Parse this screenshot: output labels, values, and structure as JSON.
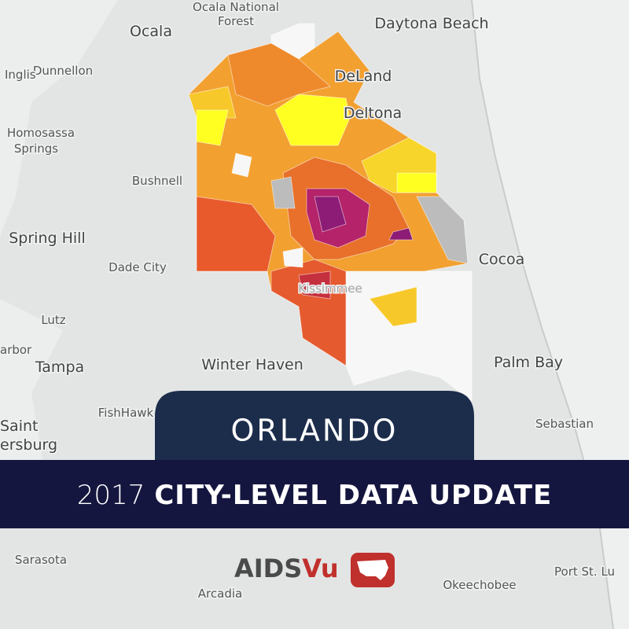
{
  "map_labels": [
    "Ocala National",
    "Forest",
    "Ocala",
    "Daytona Beach",
    "Dunnellon",
    "Inglis",
    "DeLand",
    "Deltona",
    "Homosassa",
    "Springs",
    "Bushnell",
    "Spring Hill",
    "Dade City",
    "Cocoa",
    "Kissimmee",
    "Lutz",
    "arbor",
    "Tampa",
    "Winter Haven",
    "Palm Bay",
    "FishHawk",
    "Saint",
    "ersburg",
    "Sebastian",
    "Sarasota",
    "Arcadia",
    "Okeechobee",
    "Port St. Lu"
  ],
  "banner": {
    "city": "ORLANDO",
    "year": "2017",
    "headline": "CITY-LEVEL DATA UPDATE"
  },
  "logo": {
    "left": "AIDS",
    "right": "Vu"
  }
}
